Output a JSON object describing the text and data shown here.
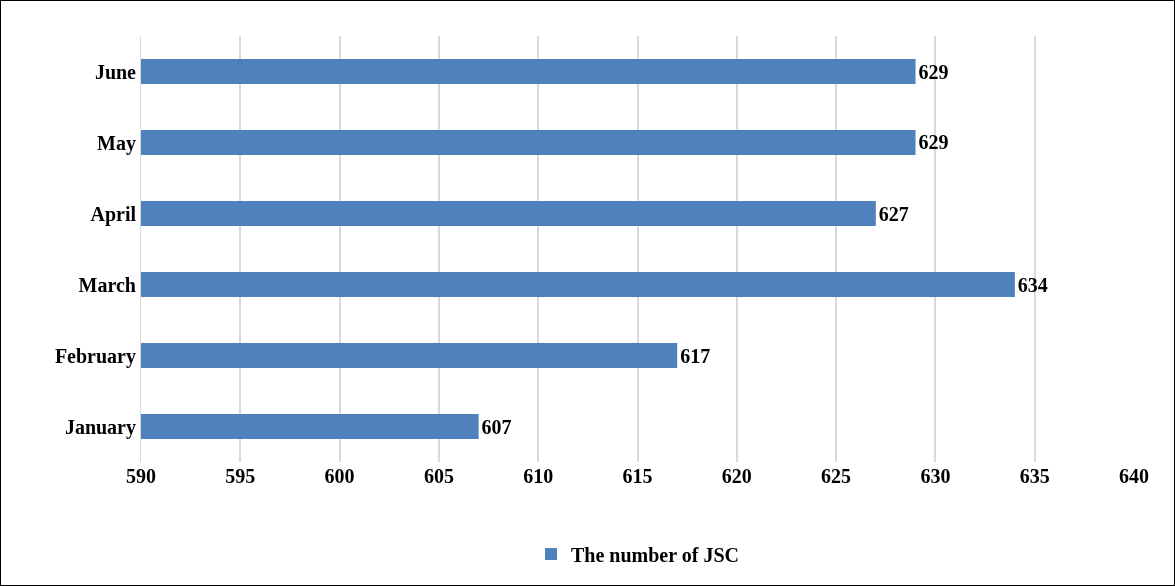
{
  "chart_data": {
    "type": "bar",
    "orientation": "horizontal",
    "categories": [
      "June",
      "May",
      "April",
      "March",
      "February",
      "January"
    ],
    "series": [
      {
        "name": "The number of JSC",
        "color": "#4f81bd",
        "values": [
          629,
          629,
          627,
          634,
          617,
          607
        ]
      }
    ],
    "xlim": [
      590,
      640
    ],
    "xticks": [
      590,
      595,
      600,
      605,
      610,
      615,
      620,
      625,
      630,
      635,
      640
    ],
    "grid": "x",
    "legend": "bottom",
    "data_labels": true
  }
}
